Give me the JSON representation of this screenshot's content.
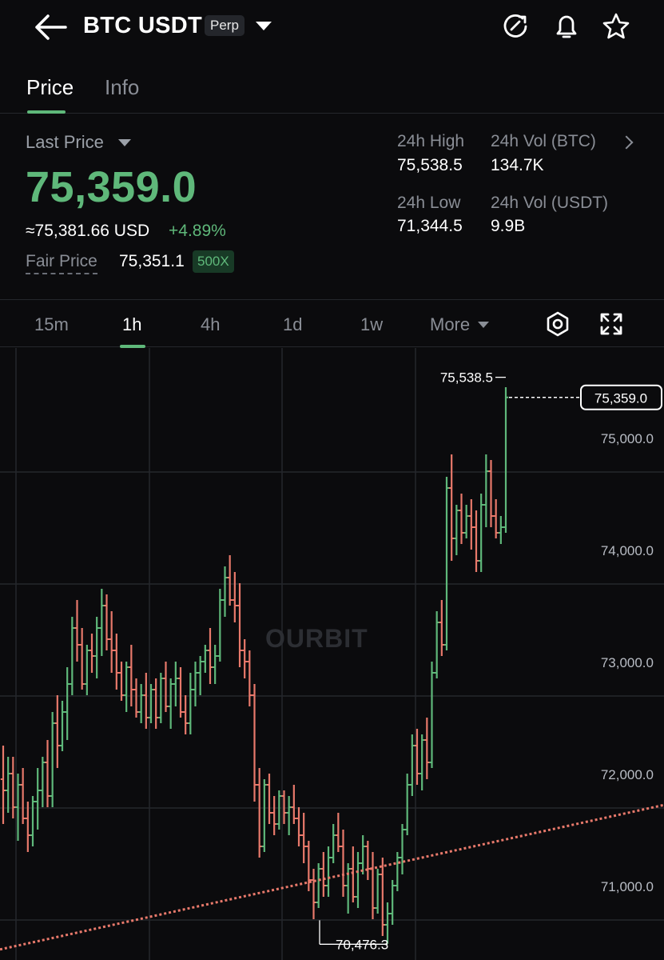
{
  "header": {
    "title": "BTC USDT",
    "badge": "Perp",
    "icons": [
      "back-arrow-icon",
      "refresh-icon",
      "bell-icon",
      "star-icon"
    ]
  },
  "tabs": [
    {
      "label": "Price",
      "active": true
    },
    {
      "label": "Info",
      "active": false
    }
  ],
  "market": {
    "last_price_label": "Last Price",
    "last_price": "75,359.0",
    "usd_price": "≈75,381.66 USD",
    "change_pct": "+4.89%",
    "fair_price_label": "Fair Price",
    "fair_price": "75,351.1",
    "leverage": "500X",
    "high_label": "24h High",
    "high": "75,538.5",
    "low_label": "24h Low",
    "low": "71,344.5",
    "vol_btc_label": "24h Vol (BTC)",
    "vol_btc": "134.7K",
    "vol_usdt_label": "24h Vol (USDT)",
    "vol_usdt": "9.9B"
  },
  "intervals": {
    "items": [
      "15m",
      "1h",
      "4h",
      "1d",
      "1w"
    ],
    "active": "1h",
    "more_label": "More"
  },
  "colors": {
    "up": "#5fb87a",
    "down": "#e8796b",
    "background": "#0b0b0d",
    "grid": "#25272c"
  },
  "watermark": "OURBIT",
  "chart_data": {
    "type": "candlestick",
    "interval": "1h",
    "ylim": [
      70380,
      75930
    ],
    "y_ticks": [
      75000,
      74000,
      73000,
      72000,
      71000
    ],
    "y_tick_labels": [
      "75,000.0",
      "74,000.0",
      "73,000.0",
      "72,000.0",
      "71,000.0"
    ],
    "last_price_label": "75,359.0",
    "last_price_value": 75359.0,
    "max_marker": {
      "label": "75,538.5",
      "value": 75538.5
    },
    "min_marker": {
      "label": "70,476.3",
      "value": 70476.3
    },
    "trendline": {
      "color": "#e8796b",
      "style": "dotted",
      "start": [
        0,
        70430
      ],
      "end": [
        100,
        71720
      ]
    },
    "candles": [
      [
        71950,
        72250,
        71550,
        71850
      ],
      [
        71850,
        72150,
        71650,
        72000
      ],
      [
        72000,
        72150,
        71600,
        71700
      ],
      [
        71700,
        72000,
        71400,
        71900
      ],
      [
        71900,
        72050,
        71550,
        71600
      ],
      [
        71600,
        71750,
        71300,
        71450
      ],
      [
        71450,
        71800,
        71350,
        71750
      ],
      [
        71750,
        72050,
        71500,
        71850
      ],
      [
        71850,
        72150,
        71700,
        72100
      ],
      [
        72100,
        72300,
        71700,
        71800
      ],
      [
        71800,
        72550,
        71700,
        72450
      ],
      [
        72450,
        72700,
        72050,
        72250
      ],
      [
        72250,
        72650,
        72200,
        72550
      ],
      [
        72550,
        72950,
        72300,
        72800
      ],
      [
        72800,
        73400,
        72700,
        73300
      ],
      [
        73300,
        73550,
        73000,
        73150
      ],
      [
        73150,
        73300,
        72750,
        72800
      ],
      [
        72800,
        73150,
        72700,
        73100
      ],
      [
        73100,
        73250,
        72900,
        73050
      ],
      [
        73050,
        73400,
        72850,
        73300
      ],
      [
        73300,
        73650,
        73050,
        73500
      ],
      [
        73500,
        73600,
        73100,
        73200
      ],
      [
        73200,
        73450,
        72900,
        73100
      ],
      [
        73100,
        73250,
        72750,
        72900
      ],
      [
        72900,
        73000,
        72650,
        72700
      ],
      [
        72700,
        73000,
        72550,
        72950
      ],
      [
        72950,
        73150,
        72600,
        72750
      ],
      [
        72750,
        72850,
        72500,
        72550
      ],
      [
        72550,
        72800,
        72450,
        72700
      ],
      [
        72700,
        72900,
        72400,
        72500
      ],
      [
        72500,
        72800,
        72450,
        72750
      ],
      [
        72750,
        72850,
        72400,
        72500
      ],
      [
        72500,
        72900,
        72450,
        72850
      ],
      [
        72850,
        73000,
        72550,
        72600
      ],
      [
        72600,
        72850,
        72400,
        72800
      ],
      [
        72800,
        73000,
        72600,
        72850
      ],
      [
        72850,
        72950,
        72500,
        72550
      ],
      [
        72550,
        72700,
        72350,
        72450
      ],
      [
        72450,
        72900,
        72350,
        72750
      ],
      [
        72750,
        73000,
        72600,
        72900
      ],
      [
        72900,
        73050,
        72700,
        73000
      ],
      [
        73000,
        73150,
        72900,
        73100
      ],
      [
        73100,
        73300,
        72800,
        72950
      ],
      [
        72950,
        73150,
        72800,
        73050
      ],
      [
        73050,
        73650,
        73000,
        73550
      ],
      [
        73550,
        73850,
        73400,
        73750
      ],
      [
        73750,
        73950,
        73500,
        73550
      ],
      [
        73550,
        73800,
        73350,
        73500
      ],
      [
        73500,
        73700,
        72950,
        73100
      ],
      [
        73100,
        73200,
        72850,
        73000
      ],
      [
        73000,
        73100,
        72600,
        72700
      ],
      [
        72700,
        72800,
        71750,
        71900
      ],
      [
        71900,
        72050,
        71250,
        71350
      ],
      [
        71350,
        71950,
        71300,
        71900
      ],
      [
        71900,
        72000,
        71550,
        71650
      ],
      [
        71650,
        71800,
        71450,
        71550
      ],
      [
        71550,
        71850,
        71500,
        71800
      ],
      [
        71800,
        71850,
        71550,
        71650
      ],
      [
        71650,
        71800,
        71450,
        71700
      ],
      [
        71700,
        71900,
        71550,
        71600
      ],
      [
        71600,
        71700,
        71350,
        71450
      ],
      [
        71450,
        71650,
        71200,
        71350
      ],
      [
        71350,
        71400,
        70950,
        71050
      ],
      [
        71050,
        71150,
        70700,
        70850
      ],
      [
        70850,
        71200,
        70800,
        71150
      ],
      [
        71150,
        71300,
        70900,
        71000
      ],
      [
        71000,
        71350,
        70900,
        71250
      ],
      [
        71250,
        71550,
        71200,
        71450
      ],
      [
        71450,
        71650,
        71300,
        71350
      ],
      [
        71350,
        71500,
        70900,
        71000
      ],
      [
        71000,
        71200,
        70750,
        71150
      ],
      [
        71150,
        71350,
        70850,
        70900
      ],
      [
        70900,
        71300,
        70800,
        71200
      ],
      [
        71200,
        71450,
        71100,
        71350
      ],
      [
        71350,
        71400,
        71050,
        71150
      ],
      [
        71150,
        71300,
        70700,
        70800
      ],
      [
        70800,
        71150,
        70750,
        71100
      ],
      [
        71100,
        71250,
        70550,
        70650
      ],
      [
        70650,
        70850,
        70480,
        70750
      ],
      [
        70750,
        71050,
        70650,
        71000
      ],
      [
        71000,
        71300,
        70950,
        71250
      ],
      [
        71250,
        71550,
        71100,
        71500
      ],
      [
        71500,
        72000,
        71450,
        71900
      ],
      [
        71900,
        72350,
        71800,
        72250
      ],
      [
        72250,
        72400,
        71900,
        72000
      ],
      [
        72000,
        72350,
        71850,
        72300
      ],
      [
        72300,
        72500,
        71950,
        72100
      ],
      [
        72100,
        73000,
        72050,
        72900
      ],
      [
        72900,
        73450,
        72850,
        73350
      ],
      [
        73350,
        73550,
        73050,
        73150
      ],
      [
        73150,
        74650,
        73100,
        74550
      ],
      [
        74550,
        74850,
        73900,
        74100
      ],
      [
        74100,
        74400,
        73950,
        74350
      ],
      [
        74350,
        74500,
        74050,
        74150
      ],
      [
        74150,
        74400,
        74100,
        74300
      ],
      [
        74300,
        74450,
        74000,
        74200
      ],
      [
        74200,
        74350,
        73800,
        73900
      ],
      [
        73900,
        74500,
        73800,
        74400
      ],
      [
        74400,
        74850,
        74200,
        74700
      ],
      [
        74700,
        74800,
        74200,
        74300
      ],
      [
        74300,
        74450,
        74100,
        74150
      ],
      [
        74150,
        74300,
        74050,
        74200
      ],
      [
        74200,
        75450,
        74150,
        75359
      ]
    ]
  }
}
